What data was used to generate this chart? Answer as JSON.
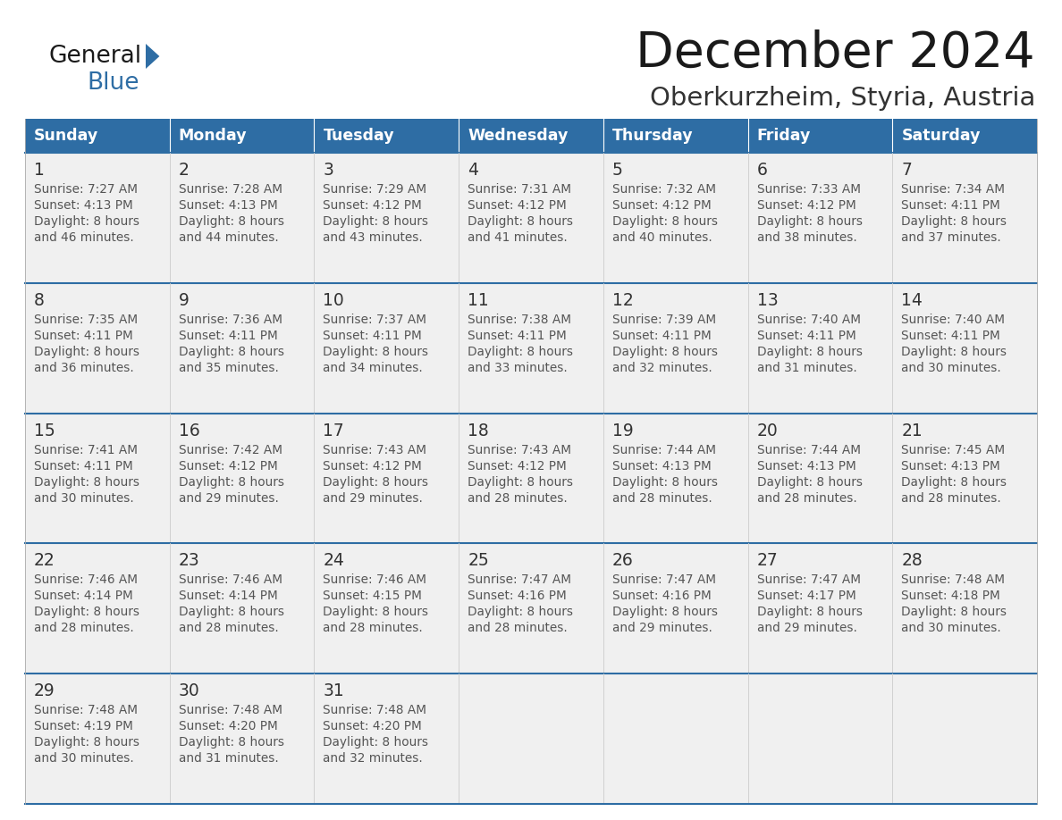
{
  "title": "December 2024",
  "subtitle": "Oberkurzheim, Styria, Austria",
  "days_of_week": [
    "Sunday",
    "Monday",
    "Tuesday",
    "Wednesday",
    "Thursday",
    "Friday",
    "Saturday"
  ],
  "header_bg": "#2E6DA4",
  "header_text": "#FFFFFF",
  "cell_bg_light": "#F0F0F0",
  "cell_bg_white": "#FFFFFF",
  "border_color": "#2E6DA4",
  "day_num_color": "#333333",
  "text_color": "#555555",
  "title_color": "#1a1a1a",
  "subtitle_color": "#333333",
  "logo_general_color": "#1a1a1a",
  "logo_blue_color": "#2E6DA4",
  "weeks": [
    [
      {
        "day": 1,
        "sunrise": "7:27 AM",
        "sunset": "4:13 PM",
        "daylight_suffix": "46 minutes."
      },
      {
        "day": 2,
        "sunrise": "7:28 AM",
        "sunset": "4:13 PM",
        "daylight_suffix": "44 minutes."
      },
      {
        "day": 3,
        "sunrise": "7:29 AM",
        "sunset": "4:12 PM",
        "daylight_suffix": "43 minutes."
      },
      {
        "day": 4,
        "sunrise": "7:31 AM",
        "sunset": "4:12 PM",
        "daylight_suffix": "41 minutes."
      },
      {
        "day": 5,
        "sunrise": "7:32 AM",
        "sunset": "4:12 PM",
        "daylight_suffix": "40 minutes."
      },
      {
        "day": 6,
        "sunrise": "7:33 AM",
        "sunset": "4:12 PM",
        "daylight_suffix": "38 minutes."
      },
      {
        "day": 7,
        "sunrise": "7:34 AM",
        "sunset": "4:11 PM",
        "daylight_suffix": "37 minutes."
      }
    ],
    [
      {
        "day": 8,
        "sunrise": "7:35 AM",
        "sunset": "4:11 PM",
        "daylight_suffix": "36 minutes."
      },
      {
        "day": 9,
        "sunrise": "7:36 AM",
        "sunset": "4:11 PM",
        "daylight_suffix": "35 minutes."
      },
      {
        "day": 10,
        "sunrise": "7:37 AM",
        "sunset": "4:11 PM",
        "daylight_suffix": "34 minutes."
      },
      {
        "day": 11,
        "sunrise": "7:38 AM",
        "sunset": "4:11 PM",
        "daylight_suffix": "33 minutes."
      },
      {
        "day": 12,
        "sunrise": "7:39 AM",
        "sunset": "4:11 PM",
        "daylight_suffix": "32 minutes."
      },
      {
        "day": 13,
        "sunrise": "7:40 AM",
        "sunset": "4:11 PM",
        "daylight_suffix": "31 minutes."
      },
      {
        "day": 14,
        "sunrise": "7:40 AM",
        "sunset": "4:11 PM",
        "daylight_suffix": "30 minutes."
      }
    ],
    [
      {
        "day": 15,
        "sunrise": "7:41 AM",
        "sunset": "4:11 PM",
        "daylight_suffix": "30 minutes."
      },
      {
        "day": 16,
        "sunrise": "7:42 AM",
        "sunset": "4:12 PM",
        "daylight_suffix": "29 minutes."
      },
      {
        "day": 17,
        "sunrise": "7:43 AM",
        "sunset": "4:12 PM",
        "daylight_suffix": "29 minutes."
      },
      {
        "day": 18,
        "sunrise": "7:43 AM",
        "sunset": "4:12 PM",
        "daylight_suffix": "28 minutes."
      },
      {
        "day": 19,
        "sunrise": "7:44 AM",
        "sunset": "4:13 PM",
        "daylight_suffix": "28 minutes."
      },
      {
        "day": 20,
        "sunrise": "7:44 AM",
        "sunset": "4:13 PM",
        "daylight_suffix": "28 minutes."
      },
      {
        "day": 21,
        "sunrise": "7:45 AM",
        "sunset": "4:13 PM",
        "daylight_suffix": "28 minutes."
      }
    ],
    [
      {
        "day": 22,
        "sunrise": "7:46 AM",
        "sunset": "4:14 PM",
        "daylight_suffix": "28 minutes."
      },
      {
        "day": 23,
        "sunrise": "7:46 AM",
        "sunset": "4:14 PM",
        "daylight_suffix": "28 minutes."
      },
      {
        "day": 24,
        "sunrise": "7:46 AM",
        "sunset": "4:15 PM",
        "daylight_suffix": "28 minutes."
      },
      {
        "day": 25,
        "sunrise": "7:47 AM",
        "sunset": "4:16 PM",
        "daylight_suffix": "28 minutes."
      },
      {
        "day": 26,
        "sunrise": "7:47 AM",
        "sunset": "4:16 PM",
        "daylight_suffix": "29 minutes."
      },
      {
        "day": 27,
        "sunrise": "7:47 AM",
        "sunset": "4:17 PM",
        "daylight_suffix": "29 minutes."
      },
      {
        "day": 28,
        "sunrise": "7:48 AM",
        "sunset": "4:18 PM",
        "daylight_suffix": "30 minutes."
      }
    ],
    [
      {
        "day": 29,
        "sunrise": "7:48 AM",
        "sunset": "4:19 PM",
        "daylight_suffix": "30 minutes."
      },
      {
        "day": 30,
        "sunrise": "7:48 AM",
        "sunset": "4:20 PM",
        "daylight_suffix": "31 minutes."
      },
      {
        "day": 31,
        "sunrise": "7:48 AM",
        "sunset": "4:20 PM",
        "daylight_suffix": "32 minutes."
      },
      null,
      null,
      null,
      null
    ]
  ]
}
